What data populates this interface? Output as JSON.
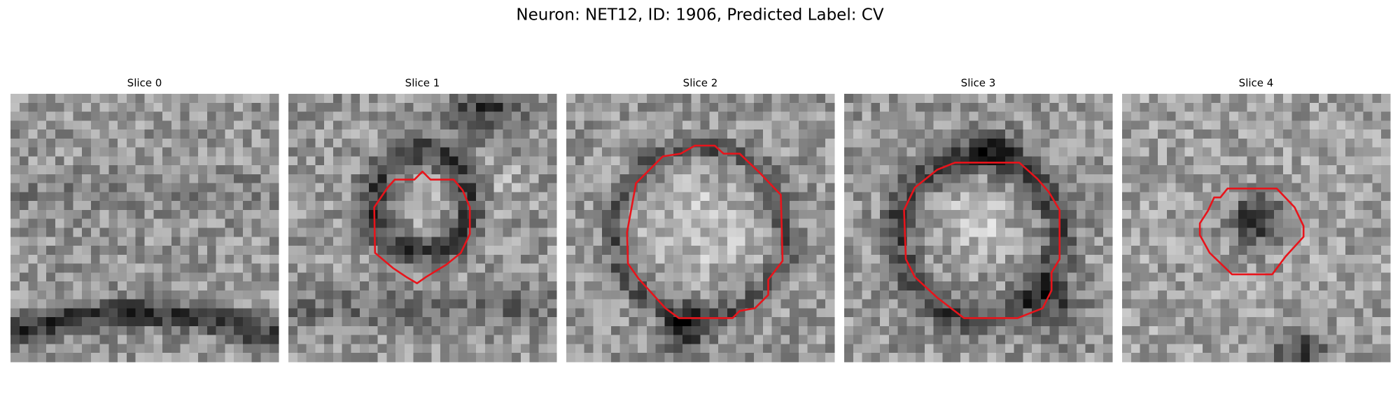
{
  "title": "Neuron: NET12, ID: 1906, Predicted Label: CV",
  "panels": [
    {
      "title": "Slice 0"
    },
    {
      "title": "Slice 1"
    },
    {
      "title": "Slice 2"
    },
    {
      "title": "Slice 3"
    },
    {
      "title": "Slice 4"
    }
  ]
}
